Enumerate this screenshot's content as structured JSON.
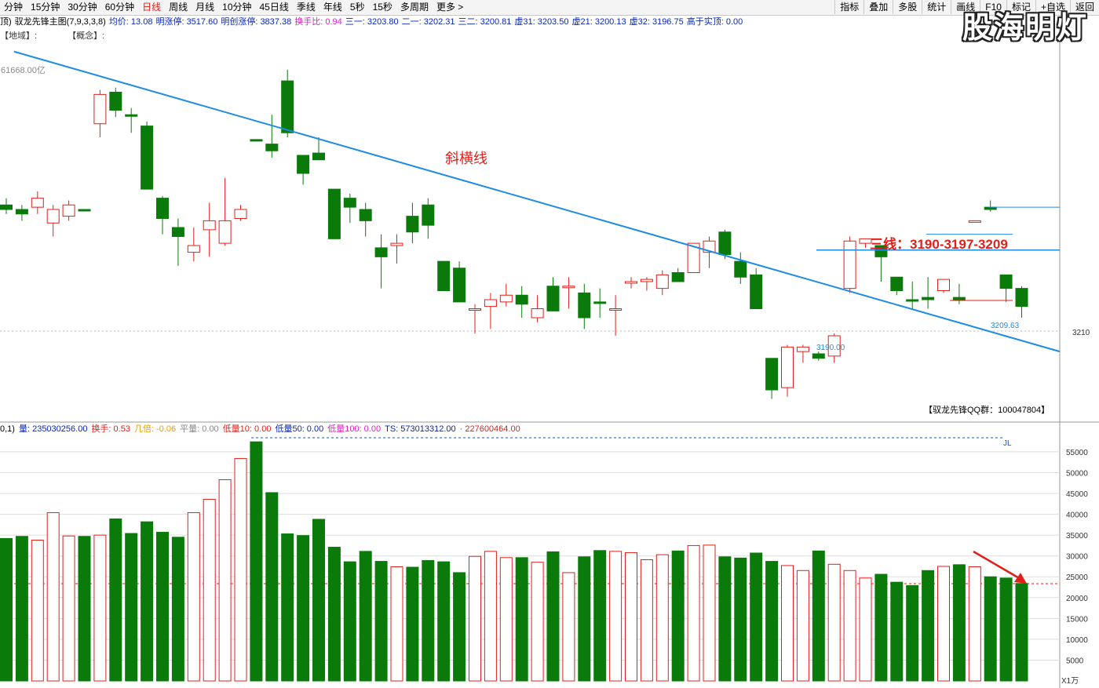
{
  "toolbar": {
    "periods": [
      "分钟",
      "15分钟",
      "30分钟",
      "60分钟",
      "日线",
      "周线",
      "月线",
      "10分钟",
      "45日线",
      "季线",
      "年线",
      "5秒",
      "15秒",
      "多周期",
      "更多 >"
    ],
    "active": "日线",
    "buttons": [
      "指标",
      "叠加",
      "多股",
      "统计",
      "画线",
      "F10",
      "标记",
      "+自选",
      "返回"
    ]
  },
  "watermark": "股海明灯",
  "info": {
    "prefix": "顶)",
    "title": "驭龙先锋主图(7,9,3,3,8)",
    "items": [
      {
        "text": "均价: 13.08",
        "color": "blue"
      },
      {
        "text": "明涨停: 3517.60",
        "color": "blue"
      },
      {
        "text": "明创涨停: 3837.38",
        "color": "blue"
      },
      {
        "text": "换手比: 0.94",
        "color": "pink"
      },
      {
        "text": "三一: 3203.80",
        "color": "blue"
      },
      {
        "text": "二一: 3202.31",
        "color": "blue"
      },
      {
        "text": "三二: 3200.81",
        "color": "blue"
      },
      {
        "text": "虚31: 3203.50",
        "color": "blue"
      },
      {
        "text": "虚21: 3200.13",
        "color": "blue"
      },
      {
        "text": "虚32: 3196.75",
        "color": "blue"
      },
      {
        "text": "高于实顶: 0.00",
        "color": "blue"
      }
    ]
  },
  "tags": [
    "【地域】:",
    "【概念】:"
  ],
  "price_label_left": "61668.00亿",
  "annotations": {
    "trend_label": "斜横线",
    "three_lines": "三线：3190-3197-3209",
    "line_3190": "3190.00",
    "line_3209": "3209.63",
    "axis_3210": "3210",
    "qq": "【驭龙先锋QQ群：100047804】"
  },
  "volume_info": {
    "prefix": "0,1)",
    "items": [
      {
        "text": "量: 235030256.00",
        "color": "blue"
      },
      {
        "text": "换手: 0.53",
        "color": "red"
      },
      {
        "text": "几倍: -0.06",
        "color": "orange"
      },
      {
        "text": "平量: 0.00",
        "color": "gray"
      },
      {
        "text": "低量10: 0.00",
        "color": "red"
      },
      {
        "text": "低量50: 0.00",
        "color": "blue"
      },
      {
        "text": "低量100: 0.00",
        "color": "pink"
      },
      {
        "text": "TS: 573013312.00",
        "color": "blue"
      },
      {
        "text": "· 227600464.00",
        "color": "red"
      }
    ]
  },
  "vol_axis": [
    "55000",
    "50000",
    "45000",
    "40000",
    "35000",
    "30000",
    "25000",
    "20000",
    "15000",
    "10000",
    "5000"
  ],
  "vol_axis_unit": "X1万",
  "jl": "JL",
  "chart_data": {
    "type": "candlestick",
    "candles": [
      {
        "o": 3210,
        "c": 3208,
        "h": 3213,
        "l": 3206,
        "up": false
      },
      {
        "o": 3208,
        "c": 3206,
        "h": 3210,
        "l": 3203,
        "up": false
      },
      {
        "o": 3213,
        "c": 3209,
        "h": 3216,
        "l": 3206,
        "up": true
      },
      {
        "o": 3202,
        "c": 3208,
        "h": 3210,
        "l": 3196,
        "up": true
      },
      {
        "o": 3205,
        "c": 3210,
        "h": 3212,
        "l": 3203,
        "up": true
      },
      {
        "o": 3208,
        "c": 3208,
        "h": 3208,
        "l": 3208,
        "up": false
      },
      {
        "o": 3246,
        "c": 3259,
        "h": 3261,
        "l": 3240,
        "up": true
      },
      {
        "o": 3260,
        "c": 3252,
        "h": 3262,
        "l": 3249,
        "up": false
      },
      {
        "o": 3250,
        "c": 3250,
        "h": 3253,
        "l": 3242,
        "up": false
      },
      {
        "o": 3245,
        "c": 3217,
        "h": 3247,
        "l": 3217,
        "up": false
      },
      {
        "o": 3213,
        "c": 3204,
        "h": 3214,
        "l": 3197,
        "up": false
      },
      {
        "o": 3200,
        "c": 3196,
        "h": 3204,
        "l": 3183,
        "up": false
      },
      {
        "o": 3189,
        "c": 3192,
        "h": 3200,
        "l": 3185,
        "up": true
      },
      {
        "o": 3199,
        "c": 3203,
        "h": 3211,
        "l": 3187,
        "up": true
      },
      {
        "o": 3193,
        "c": 3203,
        "h": 3222,
        "l": 3192,
        "up": true
      },
      {
        "o": 3204,
        "c": 3208,
        "h": 3210,
        "l": 3203,
        "up": true
      },
      {
        "o": 3239,
        "c": 3239,
        "h": 3239,
        "l": 3239,
        "up": false
      },
      {
        "o": 3237,
        "c": 3234,
        "h": 3250,
        "l": 3231,
        "up": false
      },
      {
        "o": 3265,
        "c": 3242,
        "h": 3270,
        "l": 3240,
        "up": false
      },
      {
        "o": 3232,
        "c": 3224,
        "h": 3232,
        "l": 3219,
        "up": false
      },
      {
        "o": 3233,
        "c": 3230,
        "h": 3240,
        "l": 3230,
        "up": false
      },
      {
        "o": 3217,
        "c": 3195,
        "h": 3217,
        "l": 3195,
        "up": false
      },
      {
        "o": 3213,
        "c": 3209,
        "h": 3215,
        "l": 3202,
        "up": false
      },
      {
        "o": 3208,
        "c": 3203,
        "h": 3211,
        "l": 3196,
        "up": false
      },
      {
        "o": 3191,
        "c": 3187,
        "h": 3197,
        "l": 3173,
        "up": false
      },
      {
        "o": 3192,
        "c": 3193,
        "h": 3197,
        "l": 3184,
        "up": true
      },
      {
        "o": 3205,
        "c": 3198,
        "h": 3211,
        "l": 3193,
        "up": false
      },
      {
        "o": 3210,
        "c": 3201,
        "h": 3213,
        "l": 3195,
        "up": false
      },
      {
        "o": 3185,
        "c": 3172,
        "h": 3185,
        "l": 3172,
        "up": false
      },
      {
        "o": 3182,
        "c": 3167,
        "h": 3185,
        "l": 3167,
        "up": false
      },
      {
        "o": 3164,
        "c": 3164,
        "h": 3166,
        "l": 3153,
        "up": true
      },
      {
        "o": 3165,
        "c": 3168,
        "h": 3171,
        "l": 3155,
        "up": true
      },
      {
        "o": 3170,
        "c": 3167,
        "h": 3175,
        "l": 3165,
        "up": true
      },
      {
        "o": 3170,
        "c": 3166,
        "h": 3174,
        "l": 3160,
        "up": false
      },
      {
        "o": 3164,
        "c": 3160,
        "h": 3170,
        "l": 3158,
        "up": true
      },
      {
        "o": 3174,
        "c": 3163,
        "h": 3178,
        "l": 3164,
        "up": false
      },
      {
        "o": 3174,
        "c": 3174,
        "h": 3178,
        "l": 3164,
        "up": true
      },
      {
        "o": 3160,
        "c": 3171,
        "h": 3175,
        "l": 3155,
        "up": false
      },
      {
        "o": 3167,
        "c": 3167,
        "h": 3173,
        "l": 3160,
        "up": false
      },
      {
        "o": 3164,
        "c": 3164,
        "h": 3170,
        "l": 3152,
        "up": true
      },
      {
        "o": 3176,
        "c": 3176,
        "h": 3178,
        "l": 3173,
        "up": true
      },
      {
        "o": 3176,
        "c": 3177,
        "h": 3178,
        "l": 3172,
        "up": true
      },
      {
        "o": 3173,
        "c": 3179,
        "h": 3181,
        "l": 3170,
        "up": true
      },
      {
        "o": 3180,
        "c": 3176,
        "h": 3182,
        "l": 3176,
        "up": false
      },
      {
        "o": 3193,
        "c": 3180,
        "h": 3193,
        "l": 3180,
        "up": true
      },
      {
        "o": 3194,
        "c": 3189,
        "h": 3196,
        "l": 3182,
        "up": true
      },
      {
        "o": 3198,
        "c": 3188,
        "h": 3199,
        "l": 3186,
        "up": false
      },
      {
        "o": 3185,
        "c": 3178,
        "h": 3189,
        "l": 3175,
        "up": false
      },
      {
        "o": 3179,
        "c": 3164,
        "h": 3182,
        "l": 3164,
        "up": false
      },
      {
        "o": 3142,
        "c": 3128,
        "h": 3142,
        "l": 3124,
        "up": false
      },
      {
        "o": 3129,
        "c": 3147,
        "h": 3148,
        "l": 3125,
        "up": true
      },
      {
        "o": 3147,
        "c": 3145,
        "h": 3148,
        "l": 3140,
        "up": true
      },
      {
        "o": 3144,
        "c": 3142,
        "h": 3145,
        "l": 3141,
        "up": false
      },
      {
        "o": 3143,
        "c": 3152,
        "h": 3153,
        "l": 3140,
        "up": true
      },
      {
        "o": 3194,
        "c": 3173,
        "h": 3196,
        "l": 3171,
        "up": true
      },
      {
        "o": 3195,
        "c": 3193,
        "h": 3195,
        "l": 3191,
        "up": true
      },
      {
        "o": 3192,
        "c": 3187,
        "h": 3192,
        "l": 3176,
        "up": false
      },
      {
        "o": 3178,
        "c": 3172,
        "h": 3178,
        "l": 3170,
        "up": false
      },
      {
        "o": 3168,
        "c": 3168,
        "h": 3176,
        "l": 3164,
        "up": false
      },
      {
        "o": 3168,
        "c": 3169,
        "h": 3178,
        "l": 3164,
        "up": false
      },
      {
        "o": 3177,
        "c": 3172,
        "h": 3177,
        "l": 3171,
        "up": true
      },
      {
        "o": 3169,
        "c": 3168,
        "h": 3175,
        "l": 3166,
        "up": false
      },
      {
        "o": 3203,
        "c": 3203,
        "h": 3203,
        "l": 3203,
        "up": true
      },
      {
        "o": 3209,
        "c": 3208,
        "h": 3212,
        "l": 3207,
        "up": false
      },
      {
        "o": 3179,
        "c": 3173,
        "h": 3179,
        "l": 3167,
        "up": false
      },
      {
        "o": 3173,
        "c": 3165,
        "h": 3174,
        "l": 3160,
        "up": false
      }
    ],
    "volumes": [
      34200,
      34700,
      33800,
      40400,
      34800,
      34700,
      35000,
      38900,
      35400,
      38200,
      35700,
      34500,
      40400,
      43600,
      48300,
      53400,
      57400,
      45200,
      35300,
      34900,
      38800,
      32100,
      28600,
      31100,
      28700,
      27400,
      27300,
      28900,
      28600,
      26000,
      29900,
      31100,
      29600,
      29600,
      28500,
      31000,
      26000,
      29800,
      31300,
      31100,
      30800,
      29100,
      30300,
      31200,
      32500,
      32600,
      29800,
      29500,
      30700,
      28700,
      27700,
      26500,
      31200,
      28000,
      26500,
      24700,
      25600,
      23700,
      22900,
      26500,
      27500,
      27900,
      27400,
      25000,
      24700,
      23400
    ],
    "trend_line_label": "斜横线",
    "levels": [
      3190,
      3197,
      3209
    ]
  }
}
